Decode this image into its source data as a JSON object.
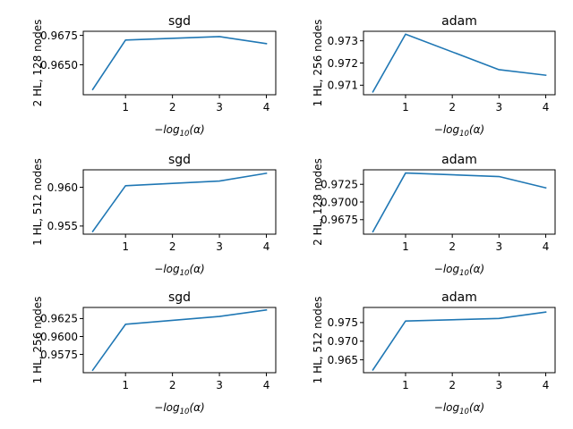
{
  "chart_data": [
    {
      "type": "line",
      "title": "sgd",
      "ylabel": "2 HL, 128 nodes",
      "xlabel": "−log10(α)",
      "x": [
        0.301,
        1,
        3,
        4
      ],
      "xlim": [
        0.1,
        4.2
      ],
      "xticks": [
        1,
        2,
        3,
        4
      ],
      "ylim": [
        0.96245,
        0.96785
      ],
      "yticks": [
        0.965,
        0.9675
      ],
      "ytick_labels": [
        "0.9650",
        "0.9675"
      ],
      "series": [
        {
          "values": [
            0.9629,
            0.9671,
            0.9674,
            0.9668
          ],
          "color": "#1f77b4"
        }
      ]
    },
    {
      "type": "line",
      "title": "adam",
      "ylabel": "1 HL, 256 nodes",
      "xlabel": "−log10(α)",
      "x": [
        0.301,
        1,
        3,
        4
      ],
      "xlim": [
        0.1,
        4.2
      ],
      "xticks": [
        1,
        2,
        3,
        4
      ],
      "ylim": [
        0.97057,
        0.97343
      ],
      "yticks": [
        0.971,
        0.972,
        0.973
      ],
      "ytick_labels": [
        "0.971",
        "0.972",
        "0.973"
      ],
      "series": [
        {
          "values": [
            0.9707,
            0.9733,
            0.9717,
            0.97145
          ],
          "color": "#1f77b4"
        }
      ]
    },
    {
      "type": "line",
      "title": "sgd",
      "ylabel": "1 HL, 512 nodes",
      "xlabel": "−log10(α)",
      "x": [
        0.301,
        1,
        3,
        4
      ],
      "xlim": [
        0.1,
        4.2
      ],
      "xticks": [
        1,
        2,
        3,
        4
      ],
      "ylim": [
        0.95395,
        0.96225
      ],
      "yticks": [
        0.955,
        0.96
      ],
      "ytick_labels": [
        "0.955",
        "0.960"
      ],
      "series": [
        {
          "values": [
            0.9543,
            0.9602,
            0.9608,
            0.9618
          ],
          "color": "#1f77b4"
        }
      ]
    },
    {
      "type": "line",
      "title": "adam",
      "ylabel": "2 HL, 128 nodes",
      "xlabel": "−log10(α)",
      "x": [
        0.301,
        1,
        3,
        4
      ],
      "xlim": [
        0.1,
        4.2
      ],
      "xticks": [
        1,
        2,
        3,
        4
      ],
      "ylim": [
        0.96545,
        0.97455
      ],
      "yticks": [
        0.9675,
        0.97,
        0.9725
      ],
      "ytick_labels": [
        "0.9675",
        "0.9700",
        "0.9725"
      ],
      "series": [
        {
          "values": [
            0.9658,
            0.9741,
            0.9736,
            0.972
          ],
          "color": "#1f77b4"
        }
      ]
    },
    {
      "type": "line",
      "title": "sgd",
      "ylabel": "1 HL, 256 nodes",
      "xlabel": "−log10(α)",
      "x": [
        0.301,
        1,
        3,
        4
      ],
      "xlim": [
        0.1,
        4.2
      ],
      "xticks": [
        1,
        2,
        3,
        4
      ],
      "ylim": [
        0.95495,
        0.96405
      ],
      "yticks": [
        0.9575,
        0.96,
        0.9625
      ],
      "ytick_labels": [
        "0.9575",
        "0.9600",
        "0.9625"
      ],
      "series": [
        {
          "values": [
            0.9553,
            0.9617,
            0.9628,
            0.9637
          ],
          "color": "#1f77b4"
        }
      ]
    },
    {
      "type": "line",
      "title": "adam",
      "ylabel": "1 HL, 512 nodes",
      "xlabel": "−log10(α)",
      "x": [
        0.301,
        1,
        3,
        4
      ],
      "xlim": [
        0.1,
        4.2
      ],
      "xticks": [
        1,
        2,
        3,
        4
      ],
      "ylim": [
        0.96155,
        0.97905
      ],
      "yticks": [
        0.965,
        0.97,
        0.975
      ],
      "ytick_labels": [
        "0.965",
        "0.970",
        "0.975"
      ],
      "series": [
        {
          "values": [
            0.9623,
            0.9754,
            0.9761,
            0.9778
          ],
          "color": "#1f77b4"
        }
      ]
    }
  ]
}
